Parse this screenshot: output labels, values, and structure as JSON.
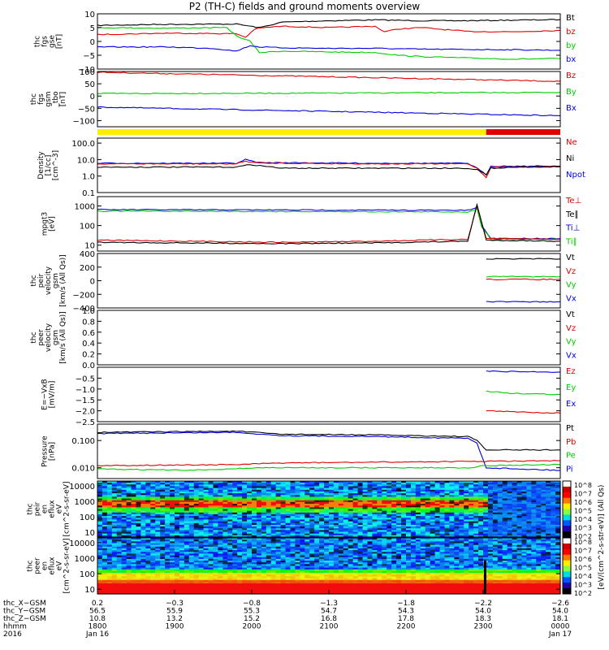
{
  "title": "P2 (TH-C) fields and ground moments overview",
  "colors": {
    "black": "#000000",
    "red": "#e00000",
    "green": "#00cc00",
    "blue": "#0000e0",
    "yellow": "#ffee00"
  },
  "chart_data": [
    {
      "type": "line",
      "ylabel": [
        "thc",
        "fgs",
        "gse",
        "[nT]"
      ],
      "ylim": [
        -10,
        10
      ],
      "yticks": [
        {
          "v": 10,
          "label": "10"
        },
        {
          "v": 5,
          "label": "5"
        },
        {
          "v": 0,
          "label": "0"
        },
        {
          "v": -5,
          "label": "−5"
        },
        {
          "v": -10,
          "label": "−10"
        }
      ],
      "legend": [
        {
          "name": "Bt",
          "color": "black"
        },
        {
          "name": "bz",
          "color": "red"
        },
        {
          "name": "by",
          "color": "green"
        },
        {
          "name": "bx",
          "color": "blue"
        }
      ],
      "series": [
        {
          "name": "Bt",
          "color": "black",
          "x": [
            0,
            0.15,
            0.3,
            0.35,
            0.4,
            0.5,
            0.6,
            0.7,
            0.8,
            0.85,
            0.9,
            0.95,
            1
          ],
          "y": [
            5.8,
            6.2,
            6.3,
            5,
            7,
            7.5,
            7.8,
            7.5,
            7.5,
            7.6,
            7.7,
            7.8,
            7.9
          ]
        },
        {
          "name": "bz",
          "color": "red",
          "x": [
            0,
            0.15,
            0.3,
            0.32,
            0.34,
            0.36,
            0.4,
            0.5,
            0.6,
            0.62,
            0.65,
            0.7,
            0.8,
            0.9,
            1
          ],
          "y": [
            2.5,
            3.0,
            2.8,
            1.5,
            4.5,
            5,
            5.5,
            5,
            5.5,
            3.5,
            4.5,
            5,
            3.6,
            3.5,
            4.0
          ]
        },
        {
          "name": "by",
          "color": "green",
          "x": [
            0,
            0.15,
            0.28,
            0.3,
            0.33,
            0.35,
            0.4,
            0.5,
            0.6,
            0.65,
            0.7,
            0.8,
            0.9,
            1
          ],
          "y": [
            5,
            4.8,
            5,
            2,
            0,
            -4,
            -3.5,
            -3.8,
            -4,
            -5,
            -5.5,
            -6,
            -6.4,
            -6.2
          ]
        },
        {
          "name": "bx",
          "color": "blue",
          "x": [
            0,
            0.15,
            0.25,
            0.3,
            0.33,
            0.35,
            0.4,
            0.5,
            0.6,
            0.7,
            0.8,
            0.9,
            1
          ],
          "y": [
            -2,
            -2,
            -2.5,
            -3.5,
            -1.5,
            -2,
            -2.3,
            -2.5,
            -2.5,
            -2.8,
            -2.9,
            -3.0,
            -3.2
          ]
        }
      ]
    },
    {
      "type": "line",
      "ylabel": [
        "thc",
        "fgs",
        "gsm",
        "_tbo",
        "[nT]"
      ],
      "ylim": [
        -125,
        100
      ],
      "yticks": [
        {
          "v": 100,
          "label": "100"
        },
        {
          "v": 50,
          "label": "50"
        },
        {
          "v": 0,
          "label": "0"
        },
        {
          "v": -50,
          "label": "−50"
        },
        {
          "v": -100,
          "label": "−100"
        }
      ],
      "legend": [
        {
          "name": "Bz",
          "color": "red"
        },
        {
          "name": "By",
          "color": "green"
        },
        {
          "name": "Bx",
          "color": "blue"
        }
      ],
      "series": [
        {
          "name": "Bz",
          "color": "red",
          "x": [
            0,
            1
          ],
          "y": [
            97,
            60
          ]
        },
        {
          "name": "By",
          "color": "green",
          "x": [
            0,
            0.5,
            1
          ],
          "y": [
            10,
            12,
            15
          ]
        },
        {
          "name": "Bx",
          "color": "blue",
          "x": [
            0,
            1
          ],
          "y": [
            -45,
            -80
          ]
        }
      ]
    },
    {
      "type": "line",
      "scale": "log",
      "ylabel": [
        "Density",
        "[1/cc]",
        "[cm^-3]"
      ],
      "ylim": [
        0.1,
        200
      ],
      "yticks": [
        {
          "v": 100,
          "label": "100.0"
        },
        {
          "v": 10,
          "label": "10.0"
        },
        {
          "v": 1,
          "label": "1.0"
        },
        {
          "v": 0.1,
          "label": "0.1"
        }
      ],
      "legend": [
        {
          "name": "Ne",
          "color": "red"
        },
        {
          "name": "Ni",
          "color": "black"
        },
        {
          "name": "Npot",
          "color": "blue"
        }
      ],
      "series": [
        {
          "name": "Npot",
          "color": "blue",
          "x": [
            0,
            0.3,
            0.32,
            0.35,
            0.4,
            0.6,
            0.8,
            0.82,
            0.84,
            0.85,
            0.9,
            1
          ],
          "y": [
            6,
            6,
            10,
            6.5,
            6.5,
            6,
            6,
            3,
            1.2,
            4,
            4,
            4
          ]
        },
        {
          "name": "Ne",
          "color": "red",
          "x": [
            0,
            0.3,
            0.32,
            0.35,
            0.4,
            0.6,
            0.8,
            0.82,
            0.84,
            0.85,
            0.9,
            1
          ],
          "y": [
            5.5,
            5.5,
            8,
            6,
            6,
            5.5,
            5.5,
            3,
            0.8,
            3.5,
            3.5,
            3.6
          ]
        },
        {
          "name": "Ni",
          "color": "black",
          "x": [
            0,
            0.3,
            0.33,
            0.4,
            0.6,
            0.8,
            0.82,
            0.84,
            0.85,
            0.9,
            1
          ],
          "y": [
            3.5,
            3.5,
            5,
            3,
            3,
            3,
            2.5,
            1.2,
            3,
            3.5,
            4
          ]
        }
      ]
    },
    {
      "type": "line",
      "scale": "log",
      "ylabel": [
        "mpgt3",
        "[eV]"
      ],
      "ylim": [
        5,
        3000
      ],
      "yticks": [
        {
          "v": 1000,
          "label": "1000"
        },
        {
          "v": 100,
          "label": "100"
        },
        {
          "v": 10,
          "label": "10"
        }
      ],
      "legend": [
        {
          "name": "Te⊥",
          "color": "red"
        },
        {
          "name": "Te∥",
          "color": "black"
        },
        {
          "name": "Ti⊥",
          "color": "blue"
        },
        {
          "name": "Ti∥",
          "color": "green"
        }
      ],
      "series": [
        {
          "name": "Ti⊥",
          "color": "blue",
          "x": [
            0,
            0.8,
            0.82,
            0.83,
            0.85,
            1
          ],
          "y": [
            650,
            600,
            800,
            100,
            22,
            22
          ]
        },
        {
          "name": "Ti∥",
          "color": "green",
          "x": [
            0,
            0.8,
            0.82,
            0.83,
            0.85,
            1
          ],
          "y": [
            550,
            500,
            700,
            90,
            20,
            20
          ]
        },
        {
          "name": "Te⊥",
          "color": "red",
          "x": [
            0,
            0.2,
            0.4,
            0.6,
            0.8,
            0.82,
            0.84,
            1
          ],
          "y": [
            18,
            16,
            14,
            16,
            20,
            1000,
            22,
            20
          ]
        },
        {
          "name": "Te∥",
          "color": "black",
          "x": [
            0,
            0.2,
            0.4,
            0.6,
            0.8,
            0.82,
            0.84,
            1
          ],
          "y": [
            14,
            13,
            12,
            13,
            16,
            1200,
            18,
            16
          ]
        }
      ]
    },
    {
      "type": "line",
      "ylabel": [
        "thc",
        "peir",
        "velocity",
        "gsm",
        "[km/s (All Qs)]"
      ],
      "ylim": [
        -400,
        400
      ],
      "yticks": [
        {
          "v": 400,
          "label": "400"
        },
        {
          "v": 200,
          "label": "200"
        },
        {
          "v": 0,
          "label": "0"
        },
        {
          "v": -200,
          "label": "−200"
        },
        {
          "v": -400,
          "label": "−400"
        }
      ],
      "legend": [
        {
          "name": "Vt",
          "color": "black"
        },
        {
          "name": "Vz",
          "color": "red"
        },
        {
          "name": "Vy",
          "color": "green"
        },
        {
          "name": "Vx",
          "color": "blue"
        }
      ],
      "series": [
        {
          "name": "Vt",
          "color": "black",
          "x": [
            0.84,
            1
          ],
          "y": [
            320,
            320
          ]
        },
        {
          "name": "Vy",
          "color": "green",
          "x": [
            0.84,
            1
          ],
          "y": [
            60,
            60
          ]
        },
        {
          "name": "Vz",
          "color": "red",
          "x": [
            0.84,
            1
          ],
          "y": [
            20,
            20
          ]
        },
        {
          "name": "Vx",
          "color": "blue",
          "x": [
            0.84,
            1
          ],
          "y": [
            -310,
            -310
          ]
        }
      ]
    },
    {
      "type": "line",
      "ylabel": [
        "thc",
        "peer",
        "velocity",
        "gsm",
        "[km/s (All Qs)]"
      ],
      "ylim": [
        0,
        1
      ],
      "yticks": [
        {
          "v": 1.0,
          "label": "1.0"
        },
        {
          "v": 0.8,
          "label": "0.8"
        },
        {
          "v": 0.6,
          "label": "0.6"
        },
        {
          "v": 0.4,
          "label": "0.4"
        },
        {
          "v": 0.2,
          "label": "0.2"
        },
        {
          "v": 0.0,
          "label": "0.0"
        }
      ],
      "legend": [
        {
          "name": "Vt",
          "color": "black"
        },
        {
          "name": "Vz",
          "color": "red"
        },
        {
          "name": "Vy",
          "color": "green"
        },
        {
          "name": "Vx",
          "color": "blue"
        }
      ],
      "series": []
    },
    {
      "type": "line",
      "ylabel": [
        "E=−VxB",
        "[mV/m]"
      ],
      "ylim": [
        -2.5,
        0
      ],
      "yticks": [
        {
          "v": -0.5,
          "label": "−0.5"
        },
        {
          "v": -1.0,
          "label": "−1.0"
        },
        {
          "v": -1.5,
          "label": "−1.5"
        },
        {
          "v": -2.0,
          "label": "−2.0"
        },
        {
          "v": -2.5,
          "label": "−2.5"
        }
      ],
      "legend": [
        {
          "name": "Ez",
          "color": "red"
        },
        {
          "name": "Ey",
          "color": "green"
        },
        {
          "name": "Ex",
          "color": "blue"
        }
      ],
      "series": [
        {
          "name": "Ex",
          "color": "blue",
          "x": [
            0.84,
            0.9,
            1
          ],
          "y": [
            -0.18,
            -0.2,
            -0.22
          ]
        },
        {
          "name": "Ey",
          "color": "green",
          "x": [
            0.84,
            0.9,
            1
          ],
          "y": [
            -1.1,
            -1.2,
            -1.25
          ]
        },
        {
          "name": "Ez",
          "color": "red",
          "x": [
            0.84,
            0.9,
            1
          ],
          "y": [
            -2.0,
            -2.05,
            -2.1
          ]
        }
      ]
    },
    {
      "type": "line",
      "scale": "log",
      "ylabel": [
        "Pressure",
        "[nPa]"
      ],
      "ylim": [
        0.004,
        0.4
      ],
      "yticks": [
        {
          "v": 0.1,
          "label": "0.100"
        },
        {
          "v": 0.01,
          "label": "0.010"
        }
      ],
      "legend": [
        {
          "name": "Pt",
          "color": "black"
        },
        {
          "name": "Pb",
          "color": "red"
        },
        {
          "name": "Pe",
          "color": "green"
        },
        {
          "name": "Pi",
          "color": "blue"
        }
      ],
      "series": [
        {
          "name": "Pt",
          "color": "black",
          "x": [
            0,
            0.3,
            0.4,
            0.6,
            0.8,
            0.82,
            0.84,
            1
          ],
          "y": [
            0.2,
            0.22,
            0.17,
            0.16,
            0.14,
            0.1,
            0.045,
            0.045
          ]
        },
        {
          "name": "Pi",
          "color": "blue",
          "x": [
            0,
            0.3,
            0.4,
            0.6,
            0.8,
            0.82,
            0.84,
            1
          ],
          "y": [
            0.18,
            0.2,
            0.15,
            0.14,
            0.12,
            0.08,
            0.01,
            0.008
          ]
        },
        {
          "name": "Pb",
          "color": "red",
          "x": [
            0,
            0.3,
            0.4,
            0.6,
            0.8,
            1
          ],
          "y": [
            0.012,
            0.013,
            0.015,
            0.016,
            0.017,
            0.018
          ]
        },
        {
          "name": "Pe",
          "color": "green",
          "x": [
            0,
            0.2,
            0.35,
            0.5,
            0.8,
            0.84,
            1
          ],
          "y": [
            0.009,
            0.008,
            0.01,
            0.01,
            0.01,
            0.012,
            0.013
          ]
        }
      ]
    },
    {
      "type": "heatmap",
      "ylabel": [
        "thc",
        "peir",
        "en",
        "eflux",
        "eV",
        "[cm^2-s-sr-eV]"
      ],
      "ylim": [
        5,
        20000
      ],
      "yticks": [
        {
          "v": 10000,
          "label": "10000"
        },
        {
          "v": 1000,
          "label": "1000"
        },
        {
          "v": 100,
          "label": "100"
        },
        {
          "v": 10,
          "label": "10"
        }
      ]
    },
    {
      "type": "heatmap",
      "ylabel": [
        "thc",
        "peer",
        "en",
        "eflux",
        "eV",
        "[cm^2-s-sr-eV]"
      ],
      "ylim": [
        5,
        20000
      ],
      "yticks": [
        {
          "v": 10000,
          "label": "10000"
        },
        {
          "v": 1000,
          "label": "1000"
        },
        {
          "v": 100,
          "label": "100"
        },
        {
          "v": 10,
          "label": "10"
        }
      ]
    }
  ],
  "colorbar": {
    "tick_labels": [
      "10^8",
      "10^7",
      "10^6",
      "10^5",
      "10^4",
      "10^3",
      "10^2"
    ],
    "tick_labels_lower": [
      "10^8",
      "10^7",
      "10^6",
      "10^5",
      "10^4",
      "10^3",
      "10^2"
    ],
    "unit": "[eV/(cm^2-s-str-eV)] (All Qs)"
  },
  "xaxis": {
    "row_labels": [
      "thc_X−GSM",
      "thc_Y−GSM",
      "thc_Z−GSM",
      "hhmm",
      "2016"
    ],
    "columns": [
      {
        "vals": [
          "0.2",
          "56.5",
          "10.8",
          "1800",
          "Jan 16"
        ]
      },
      {
        "vals": [
          "−0.3",
          "55.9",
          "13.2",
          "1900",
          ""
        ]
      },
      {
        "vals": [
          "−0.8",
          "55.3",
          "15.2",
          "2000",
          ""
        ]
      },
      {
        "vals": [
          "−1.3",
          "54.7",
          "16.8",
          "2100",
          ""
        ]
      },
      {
        "vals": [
          "−1.8",
          "54.3",
          "17.8",
          "2200",
          ""
        ]
      },
      {
        "vals": [
          "−2.2",
          "54.0",
          "18.3",
          "2300",
          ""
        ]
      },
      {
        "vals": [
          "−2.6",
          "54.0",
          "18.1",
          "0000",
          "Jan 17"
        ]
      }
    ]
  }
}
